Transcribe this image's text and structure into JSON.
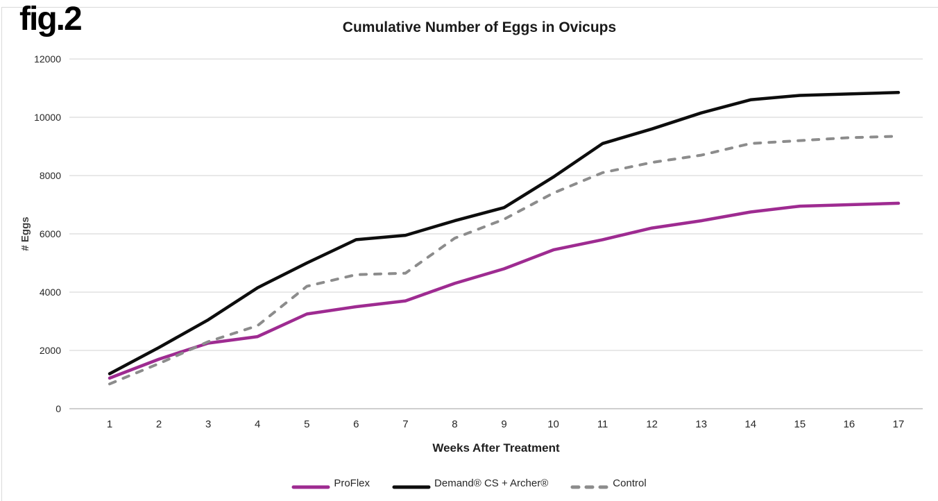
{
  "fig_label": "fig.2",
  "chart_data": {
    "type": "line",
    "title": "Cumulative Number of Eggs in Ovicups",
    "xlabel": "Weeks After Treatment",
    "ylabel": "# Eggs",
    "x": [
      1,
      2,
      3,
      4,
      5,
      6,
      7,
      8,
      9,
      10,
      11,
      12,
      13,
      14,
      15,
      16,
      17
    ],
    "ylim": [
      0,
      12000
    ],
    "yticks": [
      0,
      2000,
      4000,
      6000,
      8000,
      10000,
      12000
    ],
    "grid": true,
    "legend_position": "bottom-center",
    "colors": {
      "gridline": "#d9d9d9",
      "axis_line": "#bfbfbf",
      "proflex": "#9E2B91",
      "demand": "#0d0d0d",
      "control": "#8C8C8C"
    },
    "series": [
      {
        "name": "ProFlex",
        "color": "#9E2B91",
        "style": "solid",
        "values": [
          1050,
          1700,
          2250,
          2475,
          3250,
          3500,
          3700,
          4300,
          4800,
          5450,
          5800,
          6200,
          6450,
          6750,
          6950,
          7000,
          7050
        ]
      },
      {
        "name": "Demand® CS + Archer®",
        "color": "#0d0d0d",
        "style": "solid",
        "values": [
          1200,
          2100,
          3050,
          4150,
          5000,
          5800,
          5950,
          6450,
          6900,
          7950,
          9100,
          9600,
          10150,
          10600,
          10750,
          10800,
          10850
        ]
      },
      {
        "name": "Control",
        "color": "#8C8C8C",
        "style": "dashed",
        "values": [
          850,
          1550,
          2300,
          2850,
          4200,
          4600,
          4650,
          5850,
          6500,
          7400,
          8100,
          8450,
          8700,
          9100,
          9200,
          9300,
          9350
        ]
      }
    ]
  }
}
